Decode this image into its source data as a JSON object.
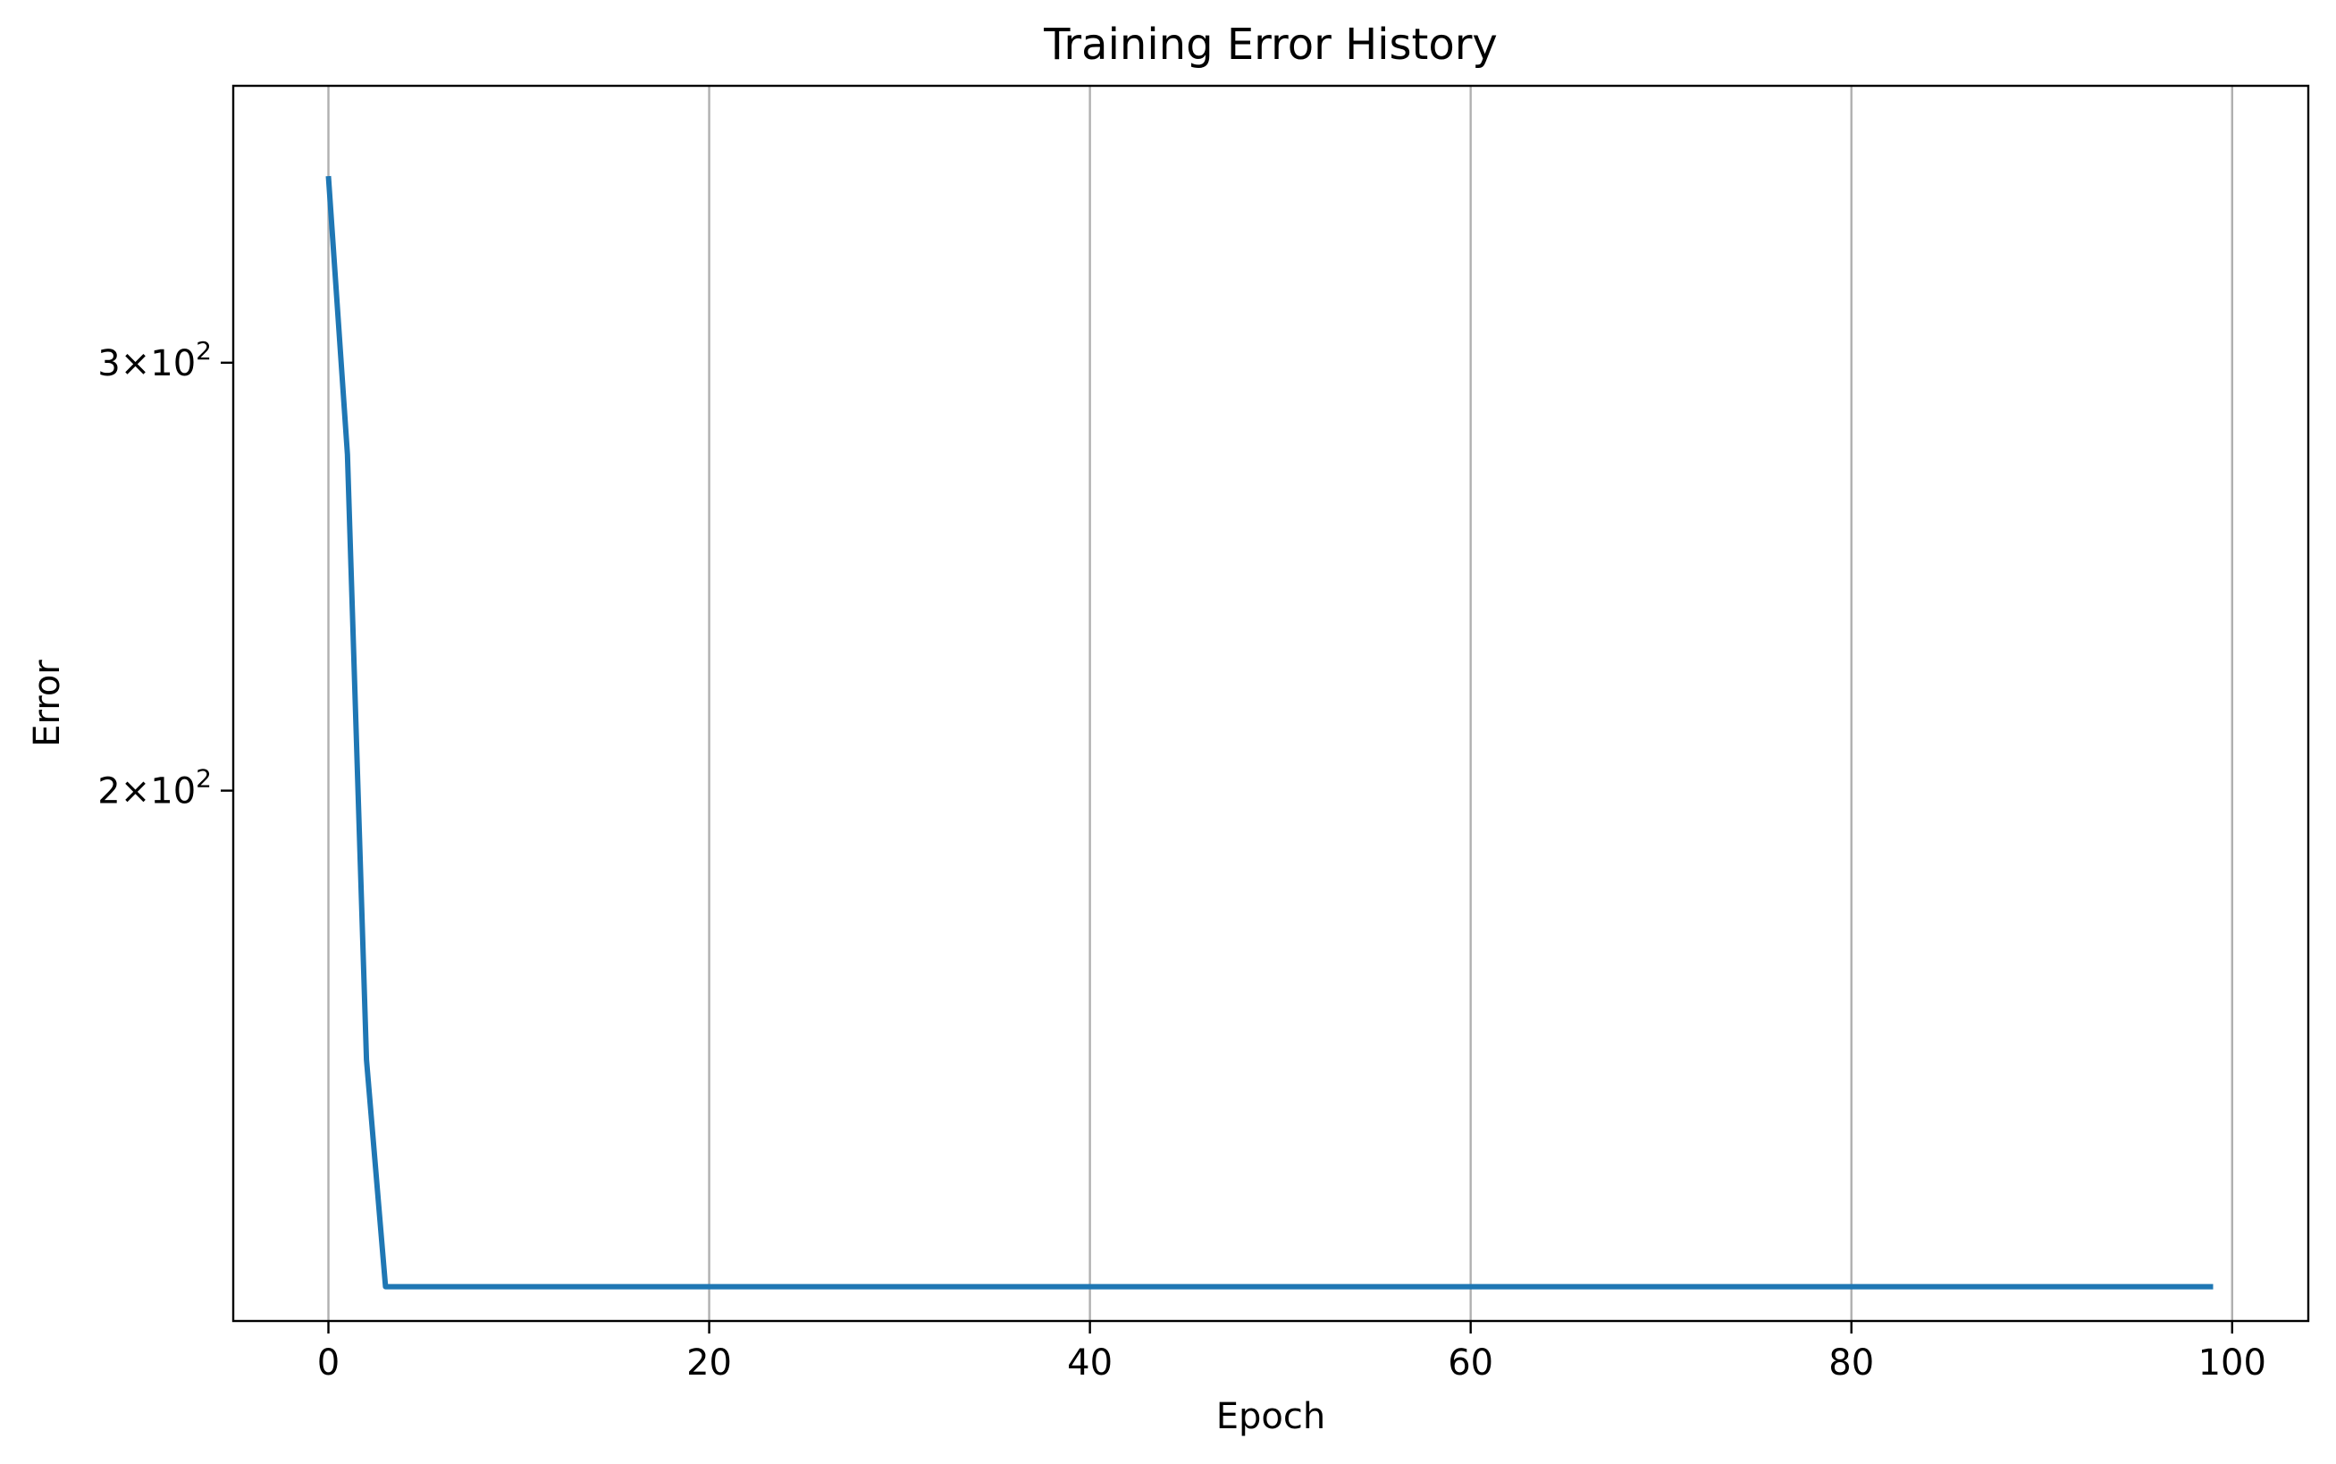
{
  "chart_data": {
    "type": "line",
    "title": "Training Error History",
    "xlabel": "Epoch",
    "ylabel": "Error",
    "xlim": [
      -5,
      104
    ],
    "ylim": [
      121,
      390
    ],
    "yscale": "log",
    "grid": {
      "x": true,
      "y": false
    },
    "x_ticks": [
      0,
      20,
      40,
      60,
      80,
      100
    ],
    "y_ticks": [
      {
        "value": 200,
        "mantissa": "2",
        "base": "10",
        "exponent": "2"
      },
      {
        "value": 300,
        "mantissa": "3",
        "base": "10",
        "exponent": "2"
      }
    ],
    "series": [
      {
        "color": "#1f77b4",
        "x": [
          0,
          1,
          2,
          3,
          99
        ],
        "y": [
          358,
          275,
          155,
          125,
          125
        ]
      }
    ]
  }
}
